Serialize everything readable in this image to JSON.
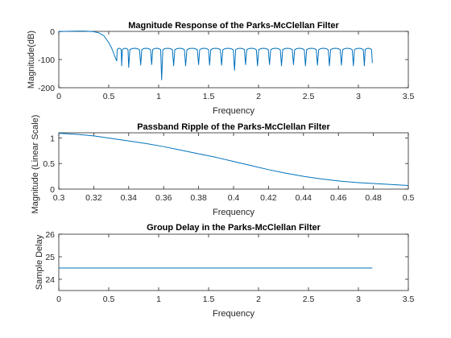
{
  "chart_data": [
    {
      "type": "line",
      "title": "Magnitude Response of the Parks-McClellan Filter",
      "xlabel": "Frequency",
      "ylabel": "Magnitude(dB)",
      "xlim": [
        0,
        3.5
      ],
      "ylim": [
        -200,
        0
      ],
      "xticks": [
        "0",
        "0.5",
        "1",
        "1.5",
        "2",
        "2.5",
        "3",
        "3.5"
      ],
      "yticks": [
        "0",
        "-100",
        "-200"
      ],
      "color": "#0072bd",
      "series": [
        {
          "passband": {
            "x": [
              0,
              0.05,
              0.1,
              0.15,
              0.2,
              0.25,
              0.3,
              0.35,
              0.4,
              0.45,
              0.5,
              0.53
            ],
            "y": [
              -1,
              0,
              0.5,
              0.8,
              1,
              1,
              0.5,
              -1,
              -5,
              -15,
              -40,
              -60
            ]
          },
          "stopband_start": 0.57,
          "stopband_end": 3.14,
          "stopband_lobes": 22,
          "lobe_peak_db": -60,
          "lobe_base_db": -75,
          "nulls": [
            {
              "x": 0.58,
              "y": -105
            },
            {
              "x": 0.63,
              "y": -122
            },
            {
              "x": 0.7,
              "y": -128
            },
            {
              "x": 0.82,
              "y": -120
            },
            {
              "x": 0.93,
              "y": -118
            },
            {
              "x": 1.03,
              "y": -172
            },
            {
              "x": 1.15,
              "y": -122
            },
            {
              "x": 1.27,
              "y": -122
            },
            {
              "x": 1.4,
              "y": -118
            },
            {
              "x": 1.51,
              "y": -120
            },
            {
              "x": 1.63,
              "y": -120
            },
            {
              "x": 1.76,
              "y": -138
            },
            {
              "x": 1.87,
              "y": -118
            },
            {
              "x": 1.99,
              "y": -122
            },
            {
              "x": 2.11,
              "y": -118
            },
            {
              "x": 2.23,
              "y": -122
            },
            {
              "x": 2.35,
              "y": -118
            },
            {
              "x": 2.47,
              "y": -122
            },
            {
              "x": 2.59,
              "y": -120
            },
            {
              "x": 2.71,
              "y": -122
            },
            {
              "x": 2.83,
              "y": -120
            },
            {
              "x": 2.95,
              "y": -122
            },
            {
              "x": 3.06,
              "y": -122
            }
          ],
          "end_y": -112
        }
      ]
    },
    {
      "type": "line",
      "title": "Passband Ripple of the Parks-McClellan Filter",
      "xlabel": "Frequency",
      "ylabel": "Magnitude (Linear Scale)",
      "xlim": [
        0.3,
        0.5
      ],
      "ylim": [
        0,
        1.1
      ],
      "xticks": [
        "0.3",
        "0.32",
        "0.34",
        "0.36",
        "0.38",
        "0.4",
        "0.42",
        "0.44",
        "0.46",
        "0.48",
        "0.5"
      ],
      "yticks": [
        "1",
        "0.5",
        "0"
      ],
      "color": "#0072bd",
      "series": [
        {
          "x": [
            0.3,
            0.31,
            0.32,
            0.33,
            0.34,
            0.35,
            0.36,
            0.37,
            0.38,
            0.39,
            0.4,
            0.41,
            0.42,
            0.43,
            0.44,
            0.45,
            0.46,
            0.47,
            0.48,
            0.49,
            0.5
          ],
          "y": [
            1.09,
            1.07,
            1.04,
            0.99,
            0.94,
            0.89,
            0.83,
            0.76,
            0.69,
            0.62,
            0.54,
            0.46,
            0.38,
            0.31,
            0.25,
            0.2,
            0.16,
            0.13,
            0.11,
            0.09,
            0.07
          ]
        }
      ]
    },
    {
      "type": "line",
      "title": "Group Delay in the Parks-McClellan Filter",
      "xlabel": "Frequency",
      "ylabel": "Sample Delay",
      "xlim": [
        0,
        3.5
      ],
      "ylim": [
        23.5,
        26
      ],
      "xticks": [
        "0",
        "0.5",
        "1",
        "1.5",
        "2",
        "2.5",
        "3",
        "3.5"
      ],
      "yticks": [
        "26",
        "25",
        "24"
      ],
      "color": "#0072bd",
      "series": [
        {
          "x": [
            0,
            3.14
          ],
          "y": [
            24.5,
            24.5
          ]
        }
      ]
    }
  ]
}
